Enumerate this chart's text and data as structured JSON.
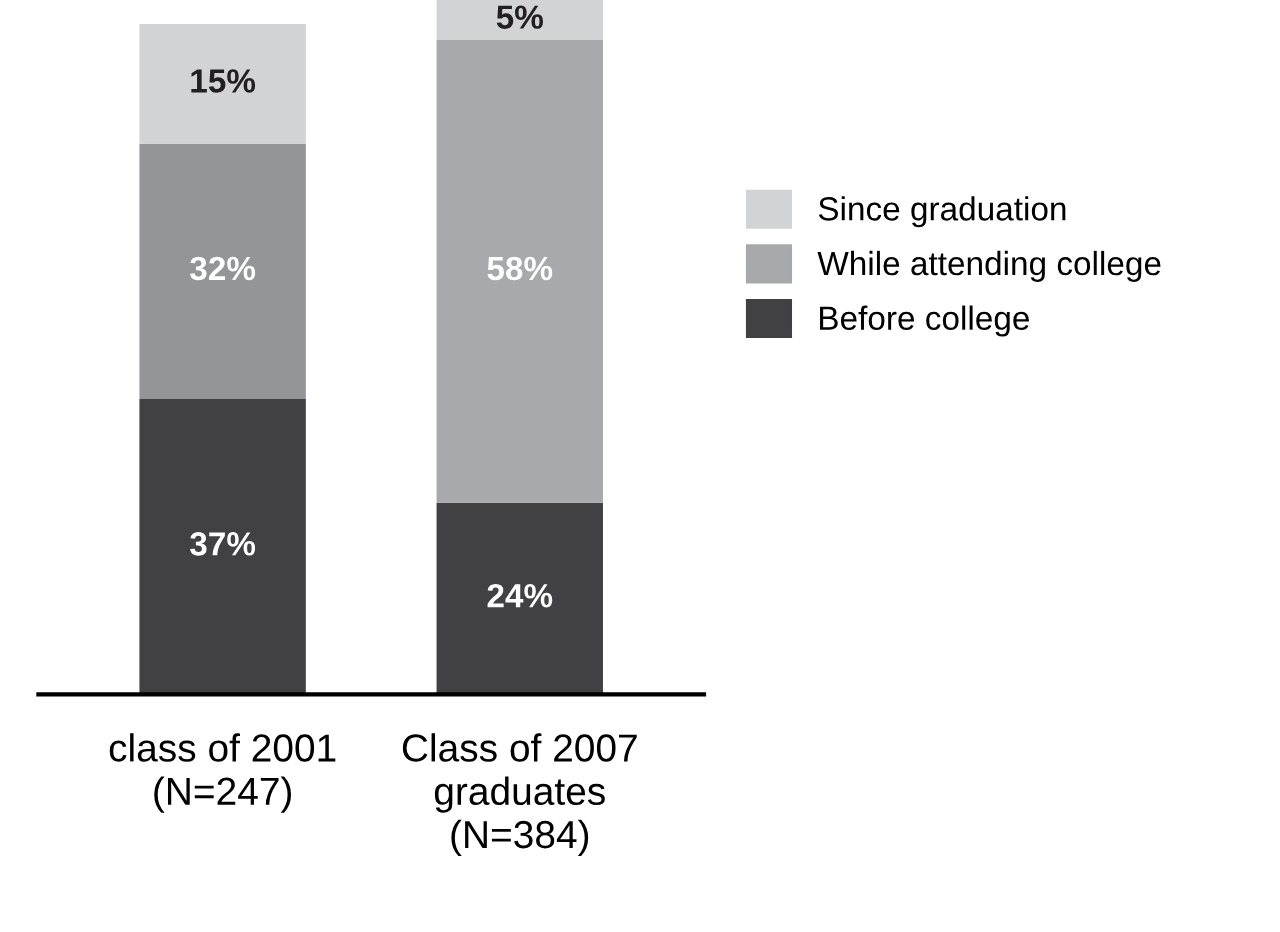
{
  "chart_data": {
    "type": "bar",
    "stacked": true,
    "legend": "right",
    "categories": [
      "class of 2001\n(N=247)",
      "Class of 2007\ngraduates\n(N=384)"
    ],
    "series": [
      {
        "name": "Before college",
        "color": "#414042",
        "values": [
          37,
          24
        ],
        "value_labels": [
          "37%",
          "24%"
        ]
      },
      {
        "name": "While attending college",
        "color": "#a7a9ac",
        "colors": [
          "#939598",
          "#a7a9ac"
        ],
        "values": [
          32,
          58
        ],
        "value_labels": [
          "32%",
          "58%"
        ]
      },
      {
        "name": "Since graduation",
        "color": "#d1d3d4",
        "values": [
          15,
          5
        ],
        "value_labels": [
          "15%",
          "5%"
        ]
      }
    ]
  }
}
